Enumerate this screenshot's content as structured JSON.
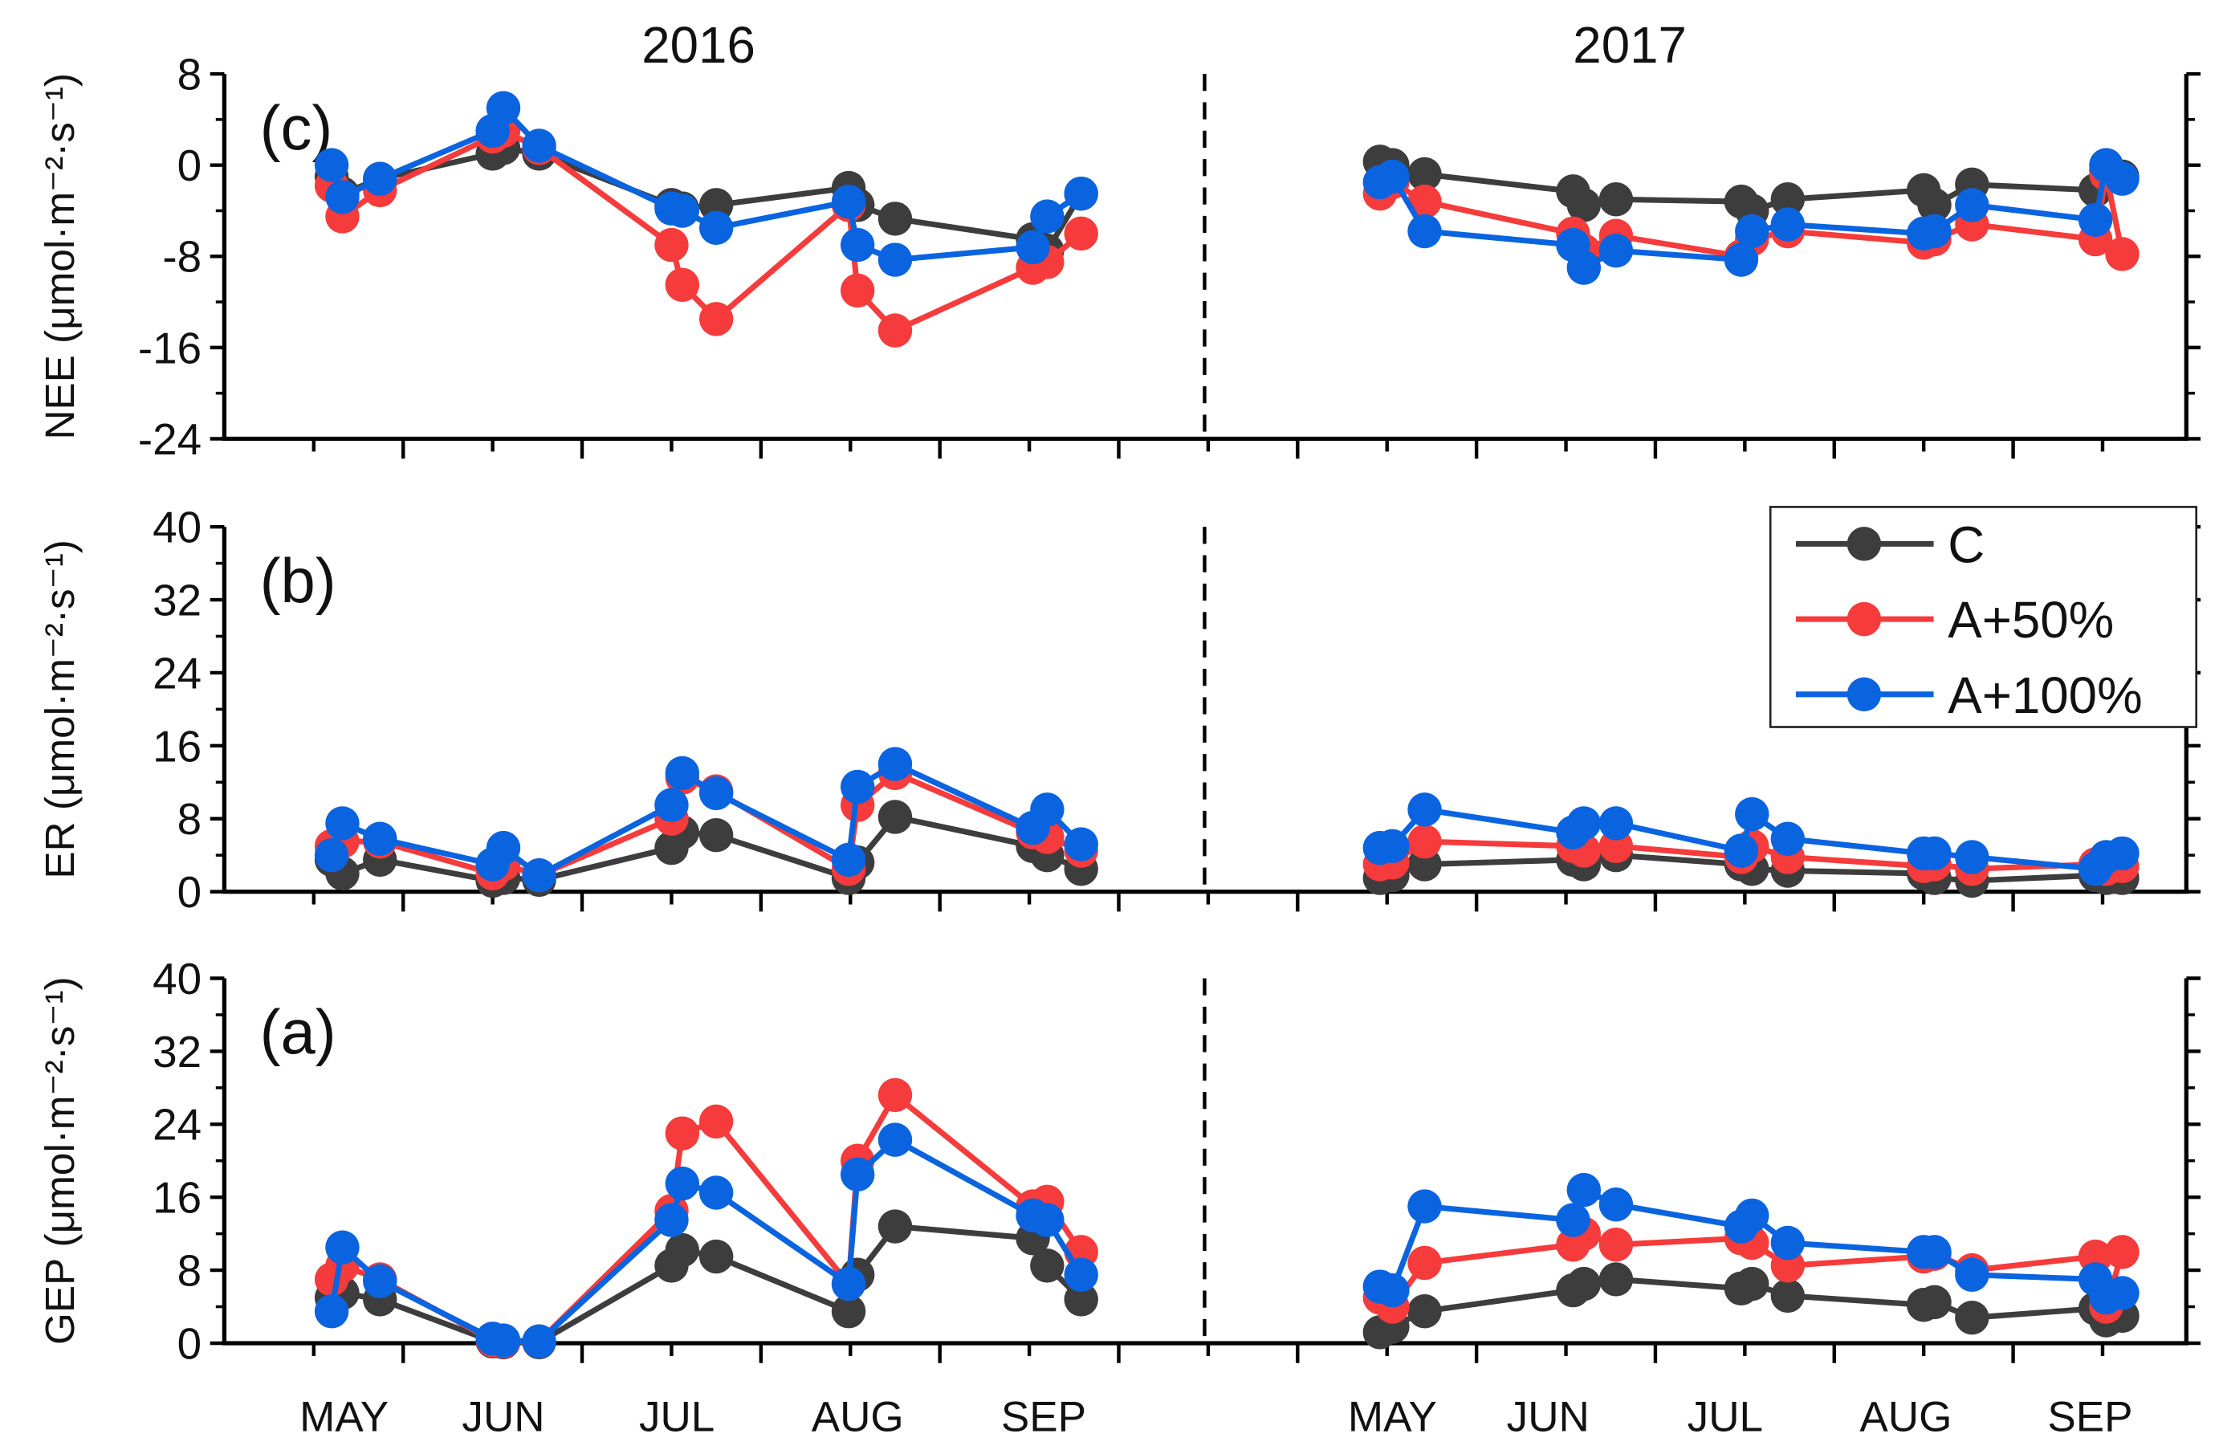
{
  "chart_data": {
    "type": "line",
    "years": [
      "2016",
      "2017"
    ],
    "colors": {
      "C": "#3d3d3d",
      "A+50%": "#f53b3b",
      "A+100%": "#0a64e0"
    },
    "legend": {
      "position": "right-middle",
      "entries": [
        "C",
        "A+50%",
        "A+100%"
      ]
    },
    "x_axis": {
      "unit": "month-position",
      "range": [
        0,
        11
      ],
      "month_labels": [
        {
          "label": "MAY",
          "x": 0.67
        },
        {
          "label": "JUN",
          "x": 1.56
        },
        {
          "label": "JUL",
          "x": 2.53
        },
        {
          "label": "AUG",
          "x": 3.54
        },
        {
          "label": "SEP",
          "x": 4.58
        },
        {
          "label": "MAY",
          "x": 6.53
        },
        {
          "label": "JUN",
          "x": 7.4
        },
        {
          "label": "JUL",
          "x": 8.39
        },
        {
          "label": "AUG",
          "x": 9.4
        },
        {
          "label": "SEP",
          "x": 10.43
        }
      ],
      "year_divider_x": 5.48
    },
    "x_2016": [
      0.6,
      0.66,
      0.87,
      1.5,
      1.56,
      1.76,
      2.5,
      2.56,
      2.75,
      3.49,
      3.54,
      3.75,
      4.52,
      4.6,
      4.79
    ],
    "x_2017": [
      6.46,
      6.53,
      6.71,
      7.54,
      7.6,
      7.78,
      8.48,
      8.54,
      8.74,
      9.5,
      9.56,
      9.77,
      10.46,
      10.52,
      10.61
    ],
    "panels": [
      {
        "id": "nee",
        "panel_label": "(c)",
        "ylabel": "NEE (μmol·m⁻²·s⁻¹)",
        "ylim": [
          -24,
          8
        ],
        "yticks": [
          8,
          0,
          -8,
          -16,
          -24
        ],
        "series": [
          {
            "name": "C",
            "v2016": [
              -1,
              -2.5,
              -1.2,
              1,
              1.5,
              1,
              -3.5,
              -3.8,
              -3.5,
              -2,
              -3.5,
              -4.7,
              -6.5,
              -7.5,
              -2.5
            ],
            "v2017": [
              0.3,
              0,
              -0.8,
              -2.3,
              -3.5,
              -3,
              -3.2,
              -4,
              -3,
              -2.2,
              -3.5,
              -1.7,
              -2.2,
              -0.5,
              -1
            ]
          },
          {
            "name": "A+50%",
            "v2016": [
              -1.8,
              -4.5,
              -2.2,
              2.5,
              3,
              1.5,
              -7,
              -10.5,
              -13.5,
              -3.5,
              -11,
              -14.5,
              -9,
              -8.5,
              -6
            ],
            "v2017": [
              -2.5,
              -1.5,
              -3.2,
              -6,
              -7.5,
              -6.2,
              -8,
              -6.5,
              -5.8,
              -6.8,
              -6.5,
              -5.2,
              -6.5,
              -0.8,
              -7.8
            ]
          },
          {
            "name": "A+100%",
            "v2016": [
              0,
              -2.8,
              -1.2,
              3,
              5,
              1.7,
              -3.8,
              -4,
              -5.5,
              -3.2,
              -7,
              -8.3,
              -7.2,
              -4.5,
              -2.5
            ],
            "v2017": [
              -1.5,
              -1,
              -5.8,
              -7,
              -9,
              -7.5,
              -8.3,
              -5.8,
              -5.2,
              -6,
              -5.8,
              -3.5,
              -4.8,
              0,
              -1.2
            ]
          }
        ]
      },
      {
        "id": "er",
        "panel_label": "(b)",
        "ylabel": "ER (μmol·m⁻²·s⁻¹)",
        "ylim": [
          0,
          40
        ],
        "yticks": [
          40,
          32,
          24,
          16,
          8,
          0
        ],
        "series": [
          {
            "name": "C",
            "v2016": [
              3.5,
              2,
              3.5,
              1.2,
              1.5,
              1.3,
              4.8,
              6.5,
              6.2,
              1.5,
              3.2,
              8.2,
              5,
              4,
              2.5
            ],
            "v2017": [
              1.5,
              1.8,
              3,
              3.5,
              3,
              4,
              3,
              2.5,
              2.3,
              2,
              1.5,
              1.2,
              1.8,
              1.5,
              1.5
            ]
          },
          {
            "name": "A+50%",
            "v2016": [
              5,
              5.5,
              5.5,
              2,
              3,
              1.8,
              8,
              12.5,
              11,
              2.5,
              9.5,
              13,
              6.5,
              6,
              4.5
            ],
            "v2017": [
              3,
              3.2,
              5.5,
              5,
              4.5,
              5,
              3.8,
              5,
              3.8,
              2.8,
              3,
              2.5,
              3,
              2.5,
              2.8
            ]
          },
          {
            "name": "A+100%",
            "v2016": [
              4,
              7.5,
              5.8,
              3,
              4.8,
              1.8,
              9.5,
              13,
              10.8,
              3.5,
              11.5,
              14,
              7,
              9,
              5.2
            ],
            "v2017": [
              4.8,
              5,
              9,
              6.5,
              7.5,
              7.5,
              4.5,
              8.5,
              5.8,
              4.2,
              4.2,
              3.8,
              2.5,
              3.8,
              4.2
            ]
          }
        ]
      },
      {
        "id": "gep",
        "panel_label": "(a)",
        "ylabel": "GEP (μmol·m⁻²·s⁻¹)",
        "ylim": [
          0,
          40
        ],
        "yticks": [
          40,
          32,
          24,
          16,
          8,
          0
        ],
        "series": [
          {
            "name": "C",
            "v2016": [
              5,
              5.5,
              4.8,
              0.2,
              0.1,
              0.1,
              8.5,
              10.2,
              9.5,
              3.5,
              7.5,
              12.8,
              11.5,
              8.5,
              4.8
            ],
            "v2017": [
              1.2,
              1.8,
              3.5,
              5.8,
              6.5,
              7,
              6,
              6.5,
              5.2,
              4.2,
              4.5,
              2.8,
              3.8,
              2.5,
              3
            ]
          },
          {
            "name": "A+50%",
            "v2016": [
              7,
              8.5,
              7,
              0.3,
              0.2,
              0.2,
              14.5,
              23,
              24.3,
              6.5,
              20,
              27.2,
              15,
              15.5,
              10
            ],
            "v2017": [
              5,
              4,
              8.8,
              10.8,
              12,
              10.8,
              11.5,
              11,
              8.5,
              9.5,
              9.8,
              8,
              9.5,
              4,
              10
            ]
          },
          {
            "name": "A+100%",
            "v2016": [
              3.5,
              10.5,
              6.8,
              0.5,
              0.3,
              0.2,
              13.5,
              17.5,
              16.5,
              6.5,
              18.5,
              22.3,
              14,
              13.5,
              7.5
            ],
            "v2017": [
              6.2,
              5.8,
              15,
              13.5,
              16.8,
              15.2,
              12.8,
              14,
              11,
              10,
              10,
              7.5,
              7,
              5,
              5.5
            ]
          }
        ]
      }
    ]
  }
}
